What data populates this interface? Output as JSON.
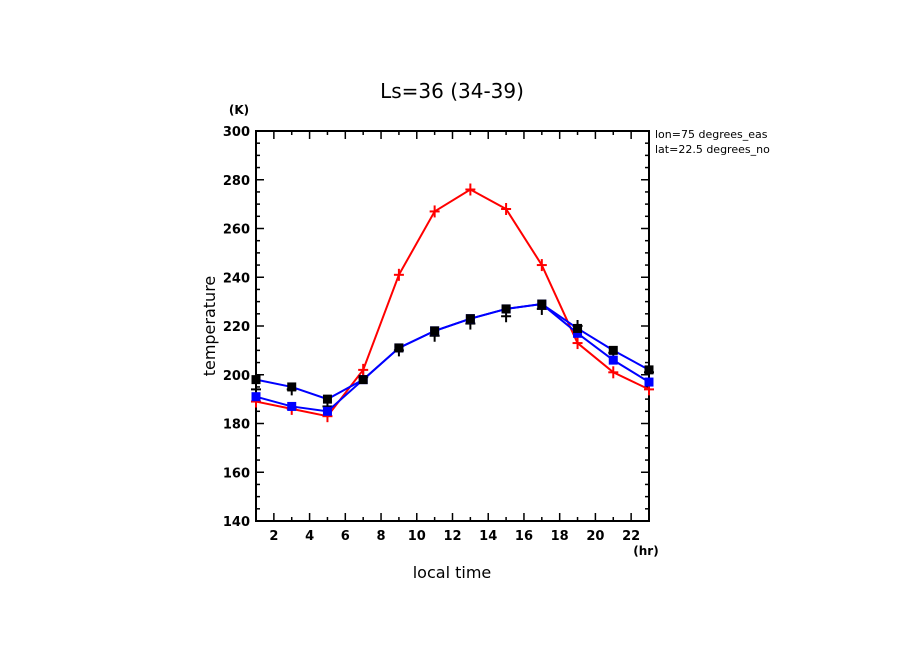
{
  "chart_data": {
    "type": "line",
    "title": "Ls=36 (34-39)",
    "xlabel": "local time",
    "ylabel": "temperature",
    "x_unit": "(hr)",
    "y_unit": "(K)",
    "xlim": [
      1,
      23
    ],
    "ylim": [
      140,
      300
    ],
    "xticks": [
      2,
      4,
      6,
      8,
      10,
      12,
      14,
      16,
      18,
      20,
      22
    ],
    "yticks": [
      140,
      160,
      180,
      200,
      220,
      240,
      260,
      280,
      300
    ],
    "grid": false,
    "annotations": [
      "lon=75 degrees_eas",
      "lat=22.5 degrees_no"
    ],
    "x": [
      1,
      3,
      5,
      7,
      9,
      11,
      13,
      15,
      17,
      19,
      21,
      23
    ],
    "series": [
      {
        "name": "red",
        "color": "#ff0000",
        "marker": "plus",
        "values": [
          189,
          186,
          183,
          202,
          241,
          267,
          276,
          268,
          245,
          213,
          201,
          194
        ]
      },
      {
        "name": "blue-upper",
        "color": "#0000ff",
        "marker": "square-black",
        "values": [
          198,
          195,
          190,
          198,
          211,
          218,
          223,
          227,
          229,
          219,
          210,
          202
        ]
      },
      {
        "name": "blue-lower",
        "color": "#0000ff",
        "marker": "square-blue",
        "values": [
          191,
          187,
          185,
          198,
          211,
          218,
          223,
          227,
          229,
          217,
          206,
          197
        ]
      },
      {
        "name": "observations",
        "color": "#000000",
        "marker": "plus",
        "values": [
          194,
          194,
          187,
          199,
          210,
          216,
          221,
          224,
          227,
          220,
          209,
          201
        ]
      }
    ]
  }
}
